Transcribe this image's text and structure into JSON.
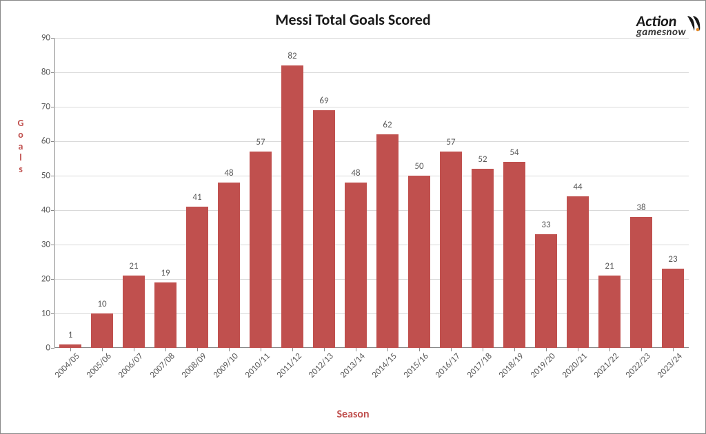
{
  "chart": {
    "type": "bar",
    "title": "Messi Total Goals Scored",
    "title_fontsize": 22,
    "title_color": "#1a1a1a",
    "ylabel": "Goals",
    "ylabel_color": "#c0504e",
    "ylabel_fontsize": 14,
    "xlabel": "Season",
    "xlabel_color": "#c0504e",
    "xlabel_fontsize": 16,
    "categories": [
      "2004/05",
      "2005/06",
      "2006/07",
      "2007/08",
      "2008/09",
      "2009/10",
      "2010/11",
      "2011/12",
      "2012/13",
      "2013/14",
      "2014/15",
      "2015/16",
      "2016/17",
      "2017/18",
      "2018/19",
      "2019/20",
      "2020/21",
      "2021/22",
      "2022/23",
      "2023/24"
    ],
    "values": [
      1,
      10,
      21,
      19,
      41,
      48,
      57,
      82,
      69,
      48,
      62,
      50,
      57,
      52,
      54,
      33,
      44,
      21,
      38,
      23
    ],
    "bar_color": "#c0504e",
    "ylim": [
      0,
      90
    ],
    "ytick_step": 10,
    "background_color": "#ffffff",
    "grid_color": "#d9d9d9",
    "axis_color": "#888888",
    "tick_label_color": "#595959",
    "data_label_color": "#595959",
    "tick_fontsize": 13,
    "data_label_fontsize": 13,
    "bar_width_ratio": 0.7
  },
  "logo": {
    "line1": "Action",
    "line2": "gamesnow",
    "accent_color": "#e38a2a",
    "text_color": "#181818"
  }
}
